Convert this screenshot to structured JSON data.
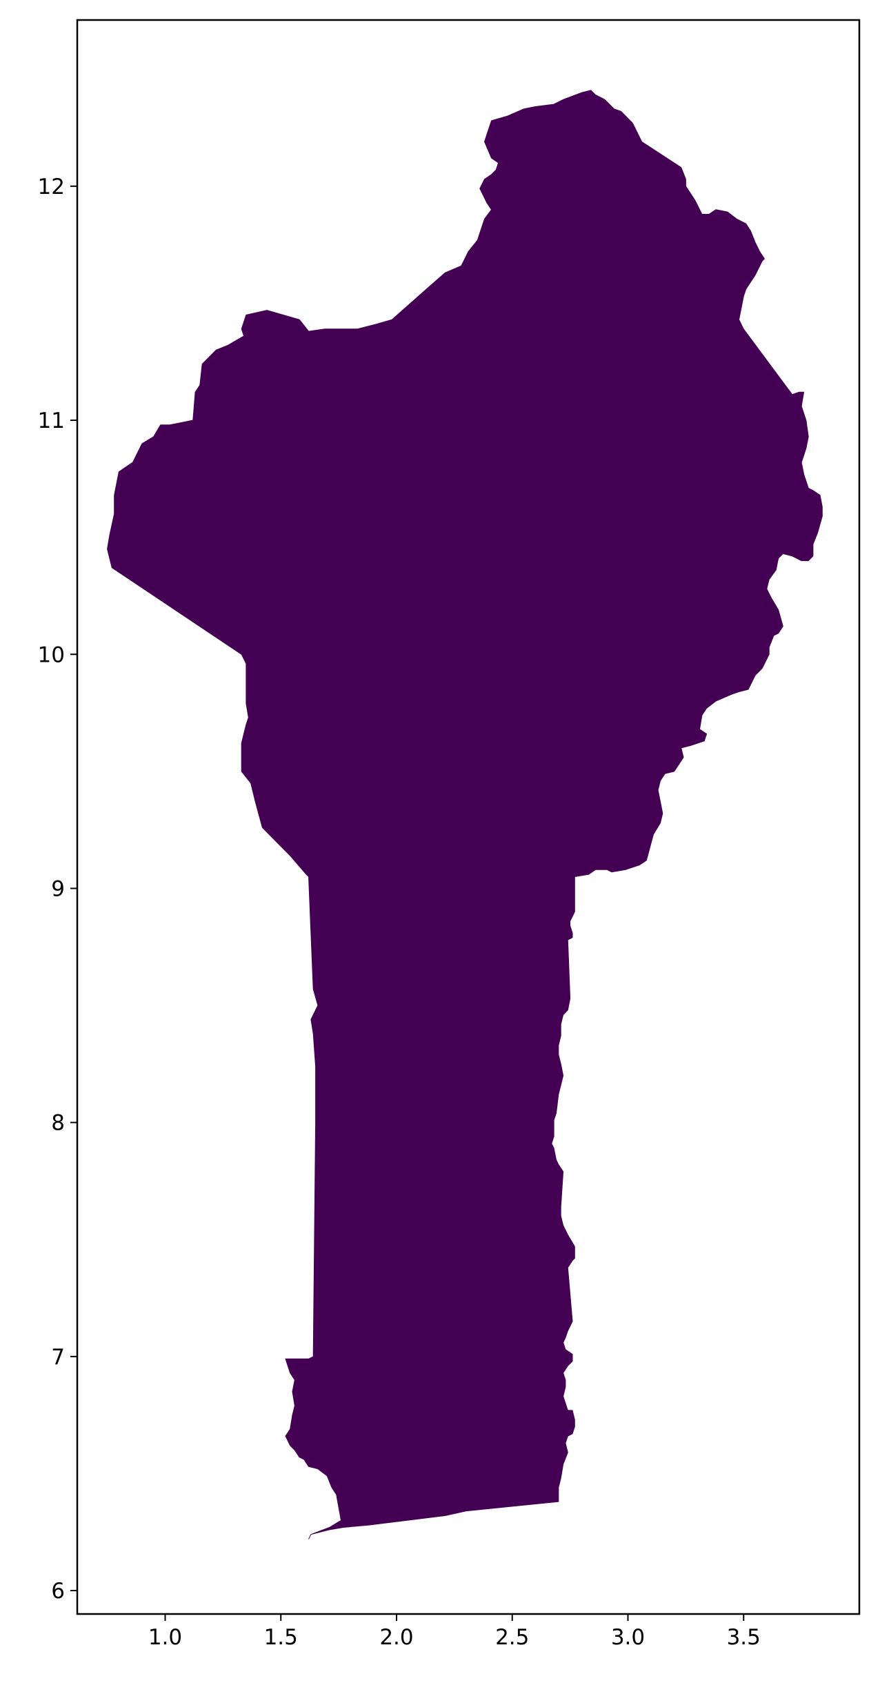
{
  "map": {
    "fill_color": "#440154",
    "frame_color": "#000000",
    "xlim": [
      0.62,
      4.0
    ],
    "ylim": [
      5.9,
      12.71
    ],
    "x_ticks": [
      {
        "value": 1.0,
        "label": "1.0"
      },
      {
        "value": 1.5,
        "label": "1.5"
      },
      {
        "value": 2.0,
        "label": "2.0"
      },
      {
        "value": 2.5,
        "label": "2.5"
      },
      {
        "value": 3.0,
        "label": "3.0"
      },
      {
        "value": 3.5,
        "label": "3.5"
      }
    ],
    "y_ticks": [
      {
        "value": 6,
        "label": "6"
      },
      {
        "value": 7,
        "label": "7"
      },
      {
        "value": 8,
        "label": "8"
      },
      {
        "value": 9,
        "label": "9"
      },
      {
        "value": 10,
        "label": "10"
      },
      {
        "value": 11,
        "label": "11"
      },
      {
        "value": 12,
        "label": "12"
      }
    ],
    "polygon": [
      [
        1.62,
        6.22
      ],
      [
        1.63,
        6.24
      ],
      [
        1.71,
        6.26
      ],
      [
        1.77,
        6.27
      ],
      [
        1.88,
        6.28
      ],
      [
        2.21,
        6.32
      ],
      [
        2.3,
        6.34
      ],
      [
        2.7,
        6.38
      ],
      [
        2.7,
        6.44
      ],
      [
        2.71,
        6.48
      ],
      [
        2.72,
        6.54
      ],
      [
        2.74,
        6.59
      ],
      [
        2.73,
        6.63
      ],
      [
        2.74,
        6.66
      ],
      [
        2.76,
        6.67
      ],
      [
        2.77,
        6.7
      ],
      [
        2.77,
        6.73
      ],
      [
        2.76,
        6.77
      ],
      [
        2.74,
        6.77
      ],
      [
        2.73,
        6.8
      ],
      [
        2.72,
        6.83
      ],
      [
        2.73,
        6.87
      ],
      [
        2.73,
        6.9
      ],
      [
        2.72,
        6.93
      ],
      [
        2.74,
        6.96
      ],
      [
        2.76,
        6.98
      ],
      [
        2.76,
        7.01
      ],
      [
        2.73,
        7.03
      ],
      [
        2.72,
        7.06
      ],
      [
        2.73,
        7.08
      ],
      [
        2.74,
        7.11
      ],
      [
        2.76,
        7.15
      ],
      [
        2.74,
        7.38
      ],
      [
        2.76,
        7.41
      ],
      [
        2.77,
        7.42
      ],
      [
        2.77,
        7.47
      ],
      [
        2.74,
        7.52
      ],
      [
        2.72,
        7.56
      ],
      [
        2.71,
        7.6
      ],
      [
        2.71,
        7.64
      ],
      [
        2.72,
        7.79
      ],
      [
        2.7,
        7.82
      ],
      [
        2.69,
        7.84
      ],
      [
        2.68,
        7.89
      ],
      [
        2.67,
        7.91
      ],
      [
        2.68,
        7.94
      ],
      [
        2.68,
        8.01
      ],
      [
        2.69,
        8.04
      ],
      [
        2.7,
        8.12
      ],
      [
        2.71,
        8.16
      ],
      [
        2.72,
        8.2
      ],
      [
        2.71,
        8.25
      ],
      [
        2.7,
        8.29
      ],
      [
        2.7,
        8.33
      ],
      [
        2.71,
        8.37
      ],
      [
        2.71,
        8.42
      ],
      [
        2.72,
        8.46
      ],
      [
        2.74,
        8.48
      ],
      [
        2.75,
        8.53
      ],
      [
        2.74,
        8.78
      ],
      [
        2.76,
        8.79
      ],
      [
        2.76,
        8.81
      ],
      [
        2.75,
        8.84
      ],
      [
        2.75,
        8.86
      ],
      [
        2.76,
        8.88
      ],
      [
        2.77,
        8.9
      ],
      [
        2.77,
        8.95
      ],
      [
        2.77,
        9.05
      ],
      [
        2.83,
        9.06
      ],
      [
        2.86,
        9.08
      ],
      [
        2.91,
        9.08
      ],
      [
        2.93,
        9.07
      ],
      [
        2.99,
        9.08
      ],
      [
        3.05,
        9.1
      ],
      [
        3.08,
        9.12
      ],
      [
        3.11,
        9.23
      ],
      [
        3.14,
        9.28
      ],
      [
        3.15,
        9.32
      ],
      [
        3.14,
        9.37
      ],
      [
        3.13,
        9.42
      ],
      [
        3.14,
        9.46
      ],
      [
        3.16,
        9.49
      ],
      [
        3.2,
        9.5
      ],
      [
        3.24,
        9.56
      ],
      [
        3.23,
        9.6
      ],
      [
        3.27,
        9.61
      ],
      [
        3.33,
        9.63
      ],
      [
        3.34,
        9.66
      ],
      [
        3.31,
        9.68
      ],
      [
        3.32,
        9.74
      ],
      [
        3.34,
        9.77
      ],
      [
        3.38,
        9.8
      ],
      [
        3.45,
        9.83
      ],
      [
        3.48,
        9.84
      ],
      [
        3.52,
        9.85
      ],
      [
        3.55,
        9.91
      ],
      [
        3.58,
        9.94
      ],
      [
        3.61,
        10.0
      ],
      [
        3.61,
        10.03
      ],
      [
        3.63,
        10.08
      ],
      [
        3.65,
        10.09
      ],
      [
        3.67,
        10.12
      ],
      [
        3.65,
        10.19
      ],
      [
        3.62,
        10.24
      ],
      [
        3.6,
        10.28
      ],
      [
        3.61,
        10.32
      ],
      [
        3.64,
        10.36
      ],
      [
        3.65,
        10.41
      ],
      [
        3.67,
        10.43
      ],
      [
        3.71,
        10.42
      ],
      [
        3.75,
        10.4
      ],
      [
        3.78,
        10.4
      ],
      [
        3.8,
        10.42
      ],
      [
        3.8,
        10.47
      ],
      [
        3.82,
        10.52
      ],
      [
        3.84,
        10.59
      ],
      [
        3.84,
        10.63
      ],
      [
        3.83,
        10.68
      ],
      [
        3.8,
        10.7
      ],
      [
        3.78,
        10.71
      ],
      [
        3.76,
        10.77
      ],
      [
        3.75,
        10.82
      ],
      [
        3.76,
        10.85
      ],
      [
        3.77,
        10.88
      ],
      [
        3.78,
        10.93
      ],
      [
        3.77,
        11.0
      ],
      [
        3.75,
        11.06
      ],
      [
        3.76,
        11.12
      ],
      [
        3.74,
        11.12
      ],
      [
        3.71,
        11.11
      ],
      [
        3.68,
        11.15
      ],
      [
        3.5,
        11.39
      ],
      [
        3.48,
        11.43
      ],
      [
        3.49,
        11.48
      ],
      [
        3.5,
        11.53
      ],
      [
        3.51,
        11.56
      ],
      [
        3.55,
        11.62
      ],
      [
        3.58,
        11.68
      ],
      [
        3.59,
        11.69
      ],
      [
        3.57,
        11.72
      ],
      [
        3.55,
        11.76
      ],
      [
        3.53,
        11.81
      ],
      [
        3.51,
        11.84
      ],
      [
        3.47,
        11.86
      ],
      [
        3.43,
        11.89
      ],
      [
        3.38,
        11.9
      ],
      [
        3.35,
        11.88
      ],
      [
        3.32,
        11.88
      ],
      [
        3.29,
        11.94
      ],
      [
        3.27,
        11.97
      ],
      [
        3.25,
        12.0
      ],
      [
        3.25,
        12.03
      ],
      [
        3.23,
        12.08
      ],
      [
        3.06,
        12.19
      ],
      [
        3.02,
        12.27
      ],
      [
        2.97,
        12.32
      ],
      [
        2.94,
        12.33
      ],
      [
        2.9,
        12.37
      ],
      [
        2.86,
        12.39
      ],
      [
        2.84,
        12.41
      ],
      [
        2.8,
        12.4
      ],
      [
        2.72,
        12.37
      ],
      [
        2.68,
        12.35
      ],
      [
        2.6,
        12.34
      ],
      [
        2.55,
        12.33
      ],
      [
        2.48,
        12.3
      ],
      [
        2.41,
        12.28
      ],
      [
        2.38,
        12.19
      ],
      [
        2.41,
        12.12
      ],
      [
        2.44,
        12.1
      ],
      [
        2.43,
        12.07
      ],
      [
        2.41,
        12.05
      ],
      [
        2.38,
        12.03
      ],
      [
        2.36,
        11.99
      ],
      [
        2.39,
        11.93
      ],
      [
        2.41,
        11.9
      ],
      [
        2.38,
        11.86
      ],
      [
        2.35,
        11.77
      ],
      [
        2.31,
        11.72
      ],
      [
        2.28,
        11.66
      ],
      [
        2.21,
        11.63
      ],
      [
        2.14,
        11.57
      ],
      [
        1.98,
        11.43
      ],
      [
        1.91,
        11.41
      ],
      [
        1.83,
        11.39
      ],
      [
        1.69,
        11.39
      ],
      [
        1.62,
        11.38
      ],
      [
        1.58,
        11.43
      ],
      [
        1.44,
        11.47
      ],
      [
        1.35,
        11.45
      ],
      [
        1.33,
        11.39
      ],
      [
        1.34,
        11.36
      ],
      [
        1.27,
        11.32
      ],
      [
        1.22,
        11.3
      ],
      [
        1.16,
        11.24
      ],
      [
        1.15,
        11.15
      ],
      [
        1.13,
        11.12
      ],
      [
        1.12,
        11.0
      ],
      [
        1.02,
        10.98
      ],
      [
        0.98,
        10.98
      ],
      [
        0.95,
        10.93
      ],
      [
        0.9,
        10.9
      ],
      [
        0.86,
        10.82
      ],
      [
        0.8,
        10.78
      ],
      [
        0.78,
        10.68
      ],
      [
        0.78,
        10.6
      ],
      [
        0.76,
        10.51
      ],
      [
        0.75,
        10.45
      ],
      [
        0.77,
        10.37
      ],
      [
        1.33,
        10.0
      ],
      [
        1.35,
        9.96
      ],
      [
        1.35,
        9.79
      ],
      [
        1.36,
        9.73
      ],
      [
        1.35,
        9.7
      ],
      [
        1.33,
        9.62
      ],
      [
        1.33,
        9.5
      ],
      [
        1.37,
        9.45
      ],
      [
        1.39,
        9.37
      ],
      [
        1.42,
        9.26
      ],
      [
        1.54,
        9.14
      ],
      [
        1.61,
        9.06
      ],
      [
        1.62,
        9.05
      ],
      [
        1.64,
        8.57
      ],
      [
        1.66,
        8.5
      ],
      [
        1.63,
        8.44
      ],
      [
        1.64,
        8.38
      ],
      [
        1.65,
        8.24
      ],
      [
        1.65,
        8.0
      ],
      [
        1.64,
        7.0
      ],
      [
        1.62,
        6.99
      ],
      [
        1.52,
        6.99
      ],
      [
        1.54,
        6.93
      ],
      [
        1.56,
        6.9
      ],
      [
        1.55,
        6.85
      ],
      [
        1.56,
        6.79
      ],
      [
        1.55,
        6.75
      ],
      [
        1.54,
        6.69
      ],
      [
        1.52,
        6.66
      ],
      [
        1.54,
        6.62
      ],
      [
        1.56,
        6.6
      ],
      [
        1.58,
        6.57
      ],
      [
        1.6,
        6.56
      ],
      [
        1.62,
        6.53
      ],
      [
        1.66,
        6.52
      ],
      [
        1.7,
        6.49
      ],
      [
        1.72,
        6.44
      ],
      [
        1.74,
        6.41
      ],
      [
        1.76,
        6.3
      ],
      [
        1.71,
        6.27
      ],
      [
        1.63,
        6.24
      ]
    ]
  }
}
